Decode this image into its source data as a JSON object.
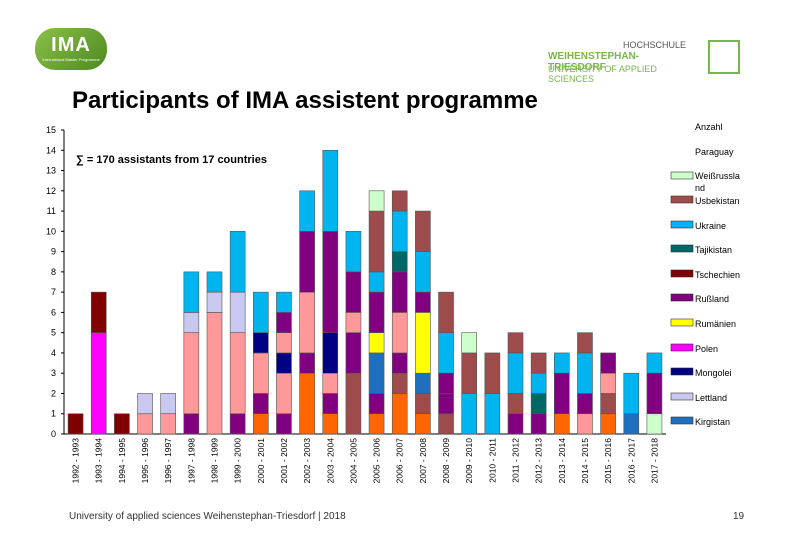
{
  "header": {
    "ima_logo_text": "IMA",
    "ima_logo_subtext": "International Master Programme",
    "university_line1": "HOCHSCHULE",
    "university_line2": "WEIHENSTEPHAN-TRIESDORF",
    "university_line3": "UNIVERSITY OF APPLIED SCIENCES"
  },
  "slide_title": "Participants of IMA assistent programme",
  "footer": {
    "text": "University of applied sciences Weihenstephan-Triesdorf | 2018",
    "page_number": "19"
  },
  "colors": {
    "Kirgistan": "#1f6fbf",
    "Lettland": "#c8c8f0",
    "Mongolei": "#000080",
    "Polen": "#ff00ff",
    "Rumänien": "#ffff00",
    "Rußland": "#800080",
    "Tschechien": "#800000",
    "Tajikistan": "#006666",
    "Ukraine": "#00b4f0",
    "Usbekistan": "#9e4b4b",
    "Weißrussland": "#ccffcc",
    "Paraguay": "#ff6600",
    "Anzahl": "#ff9999"
  },
  "chart_data": {
    "type": "bar",
    "stacked": true,
    "title": "",
    "annotation": "∑ = 170 assistants from 17 countries",
    "ylim": [
      0,
      15
    ],
    "ylabel": "",
    "xlabel": "",
    "grid": false,
    "legend_position": "right",
    "yticks": [
      0,
      1,
      2,
      3,
      4,
      5,
      6,
      7,
      8,
      9,
      10,
      11,
      12,
      13,
      14,
      15
    ],
    "categories": [
      "1992 - 1993",
      "1993 - 1994",
      "1994 - 1995",
      "1995 - 1996",
      "1996 - 1997",
      "1997 - 1998",
      "1998 - 1999",
      "1999 - 2000",
      "2000 - 2001",
      "2001 - 2002",
      "2002 - 2003",
      "2003 - 2004",
      "2004 - 2005",
      "2005 - 2006",
      "2006 - 2007",
      "2007 - 2008",
      "2008 - 2009",
      "2009 - 2010",
      "2010 - 2011",
      "2011 - 2012",
      "2012 - 2013",
      "2013 - 2014",
      "2014 - 2015",
      "2015 - 2016",
      "2016 - 2017",
      "2017 - 2018"
    ],
    "legend": [
      "Anzahl",
      "Paraguay",
      "Weißrussland",
      "Usbekistan",
      "Ukraine",
      "Tajikistan",
      "Tschechien",
      "Rußland",
      "Rumänien",
      "Polen",
      "Mongolei",
      "Lettland",
      "Kirgistan"
    ],
    "stacks": [
      [
        [
          "Tschechien",
          1
        ]
      ],
      [
        [
          "Polen",
          5
        ],
        [
          "Tschechien",
          2
        ]
      ],
      [
        [
          "Tschechien",
          1
        ]
      ],
      [
        [
          "Anzahl",
          1
        ],
        [
          "Lettland",
          1
        ]
      ],
      [
        [
          "Anzahl",
          1
        ],
        [
          "Lettland",
          1
        ]
      ],
      [
        [
          "Rußland",
          1
        ],
        [
          "Anzahl",
          4
        ],
        [
          "Lettland",
          1
        ],
        [
          "Ukraine",
          2
        ]
      ],
      [
        [
          "Anzahl",
          6
        ],
        [
          "Lettland",
          1
        ],
        [
          "Ukraine",
          1
        ]
      ],
      [
        [
          "Rußland",
          1
        ],
        [
          "Anzahl",
          4
        ],
        [
          "Lettland",
          2
        ],
        [
          "Ukraine",
          3
        ]
      ],
      [
        [
          "Paraguay",
          1
        ],
        [
          "Rußland",
          1
        ],
        [
          "Anzahl",
          2
        ],
        [
          "Mongolei",
          1
        ],
        [
          "Ukraine",
          2
        ]
      ],
      [
        [
          "Rußland",
          1
        ],
        [
          "Anzahl",
          2
        ],
        [
          "Mongolei",
          1
        ],
        [
          "Anzahl",
          1
        ],
        [
          "Rußland",
          1
        ],
        [
          "Ukraine",
          1
        ]
      ],
      [
        [
          "Paraguay",
          3
        ],
        [
          "Rußland",
          1
        ],
        [
          "Anzahl",
          3
        ],
        [
          "Rußland",
          3
        ],
        [
          "Ukraine",
          2
        ]
      ],
      [
        [
          "Paraguay",
          1
        ],
        [
          "Rußland",
          1
        ],
        [
          "Anzahl",
          1
        ],
        [
          "Mongolei",
          2
        ],
        [
          "Rußland",
          5
        ],
        [
          "Ukraine",
          4
        ]
      ],
      [
        [
          "Usbekistan",
          3
        ],
        [
          "Rußland",
          2
        ],
        [
          "Anzahl",
          1
        ],
        [
          "Rußland",
          2
        ],
        [
          "Ukraine",
          2
        ]
      ],
      [
        [
          "Paraguay",
          1
        ],
        [
          "Rußland",
          1
        ],
        [
          "Kirgistan",
          2
        ],
        [
          "Rumänien",
          1
        ],
        [
          "Rußland",
          2
        ],
        [
          "Ukraine",
          1
        ],
        [
          "Usbekistan",
          3
        ],
        [
          "Weißrussland",
          1
        ]
      ],
      [
        [
          "Paraguay",
          2
        ],
        [
          "Usbekistan",
          1
        ],
        [
          "Rußland",
          1
        ],
        [
          "Anzahl",
          2
        ],
        [
          "Rußland",
          2
        ],
        [
          "Tajikistan",
          1
        ],
        [
          "Ukraine",
          2
        ],
        [
          "Usbekistan",
          1
        ]
      ],
      [
        [
          "Paraguay",
          1
        ],
        [
          "Usbekistan",
          1
        ],
        [
          "Kirgistan",
          1
        ],
        [
          "Rumänien",
          3
        ],
        [
          "Rußland",
          1
        ],
        [
          "Ukraine",
          2
        ],
        [
          "Usbekistan",
          2
        ]
      ],
      [
        [
          "Usbekistan",
          1
        ],
        [
          "Rußland",
          1
        ],
        [
          "Rußland",
          1
        ],
        [
          "Ukraine",
          2
        ],
        [
          "Usbekistan",
          2
        ]
      ],
      [
        [
          "Ukraine",
          2
        ],
        [
          "Usbekistan",
          2
        ],
        [
          "Weißrussland",
          1
        ]
      ],
      [
        [
          "Ukraine",
          2
        ],
        [
          "Usbekistan",
          2
        ]
      ],
      [
        [
          "Rußland",
          1
        ],
        [
          "Usbekistan",
          1
        ],
        [
          "Ukraine",
          2
        ],
        [
          "Usbekistan",
          1
        ]
      ],
      [
        [
          "Rußland",
          1
        ],
        [
          "Tajikistan",
          1
        ],
        [
          "Ukraine",
          1
        ],
        [
          "Usbekistan",
          1
        ]
      ],
      [
        [
          "Paraguay",
          1
        ],
        [
          "Rußland",
          2
        ],
        [
          "Ukraine",
          1
        ]
      ],
      [
        [
          "Anzahl",
          1
        ],
        [
          "Rußland",
          1
        ],
        [
          "Ukraine",
          2
        ],
        [
          "Usbekistan",
          1
        ]
      ],
      [
        [
          "Paraguay",
          1
        ],
        [
          "Usbekistan",
          1
        ],
        [
          "Anzahl",
          1
        ],
        [
          "Rußland",
          1
        ]
      ],
      [
        [
          "Kirgistan",
          1
        ],
        [
          "Ukraine",
          2
        ]
      ],
      [
        [
          "Weißrussland",
          1
        ],
        [
          "Rußland",
          2
        ],
        [
          "Ukraine",
          1
        ]
      ]
    ]
  }
}
